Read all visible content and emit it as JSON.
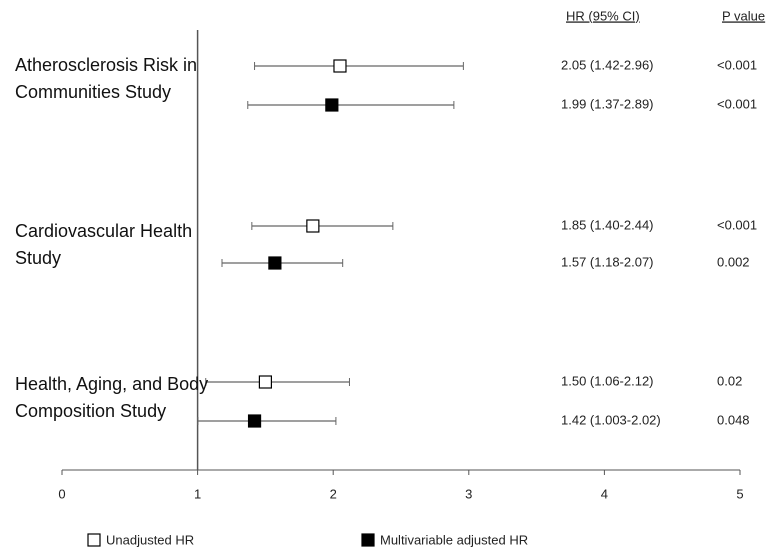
{
  "chart_data": {
    "type": "forest",
    "studies": [
      "Atherosclerosis Risk in Communities Study",
      "Cardiovascular Health Study",
      "Health, Aging, and Body Composition Study"
    ],
    "series": [
      {
        "name": "Unadjusted HR",
        "color": "#ffffff",
        "values": [
          2.05,
          1.85,
          1.5
        ],
        "lower": [
          1.42,
          1.4,
          1.06
        ],
        "upper": [
          2.96,
          2.44,
          2.12
        ],
        "ci_labels": [
          "2.05 (1.42-2.96)",
          "1.85 (1.40-2.44)",
          "1.50 (1.06-2.12)"
        ],
        "p_values": [
          "<0.001",
          "<0.001",
          "0.02"
        ]
      },
      {
        "name": "Multivariable adjusted HR",
        "color": "#000000",
        "values": [
          1.99,
          1.57,
          1.42
        ],
        "lower": [
          1.37,
          1.18,
          1.003
        ],
        "upper": [
          2.89,
          2.07,
          2.02
        ],
        "ci_labels": [
          "1.99 (1.37-2.89)",
          "1.57 (1.18-2.07)",
          "1.42 (1.003-2.02)"
        ],
        "p_values": [
          "<0.001",
          "0.002",
          "0.048"
        ]
      }
    ],
    "ci_header": "HR (95% CI)",
    "p_header": "P value",
    "xlim": [
      0,
      5
    ],
    "xticks": [
      0,
      1,
      2,
      3,
      4,
      5
    ],
    "reference": 1
  }
}
